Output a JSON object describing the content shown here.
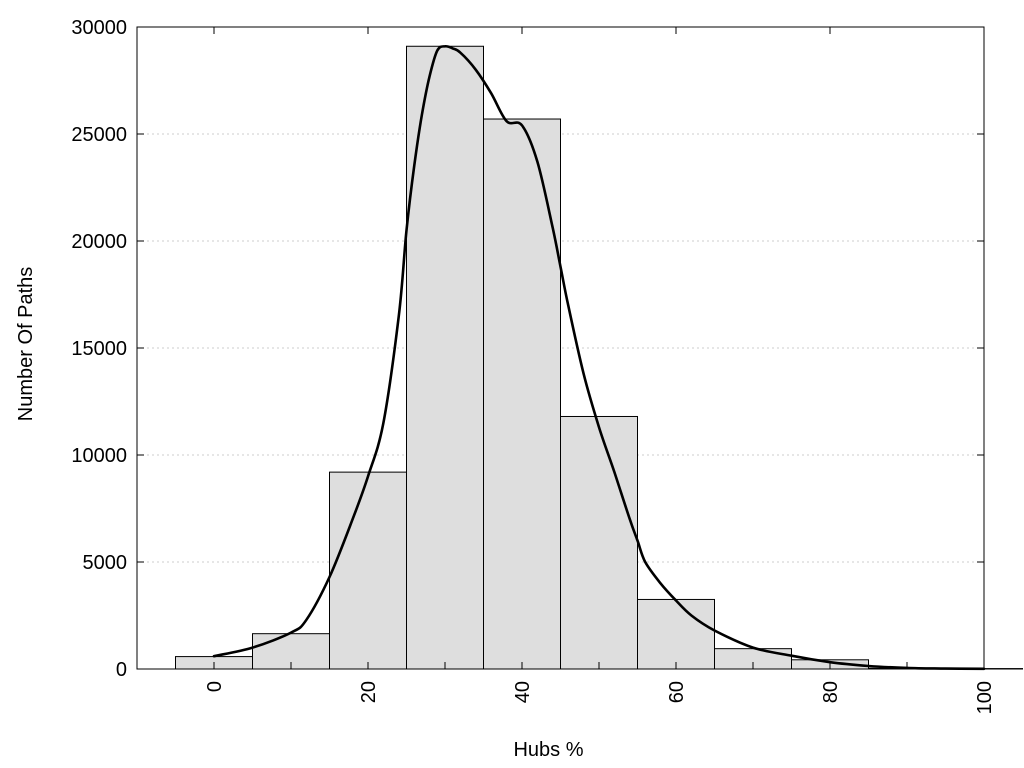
{
  "chart_data": {
    "type": "bar",
    "title": "",
    "xlabel": "Hubs %",
    "ylabel": "Number Of Paths",
    "xlim": [
      -10,
      100
    ],
    "ylim": [
      0,
      30000
    ],
    "grid": "horizontal dotted",
    "x_ticks": [
      "0",
      "20",
      "40",
      "60",
      "80",
      "100"
    ],
    "y_ticks": [
      "0",
      "5000",
      "10000",
      "15000",
      "20000",
      "25000",
      "30000"
    ],
    "bin_width": 10,
    "bins": [
      {
        "x": 0,
        "value": 580
      },
      {
        "x": 10,
        "value": 1650
      },
      {
        "x": 20,
        "value": 9200
      },
      {
        "x": 30,
        "value": 29100
      },
      {
        "x": 40,
        "value": 25700
      },
      {
        "x": 50,
        "value": 11800
      },
      {
        "x": 60,
        "value": 3250
      },
      {
        "x": 70,
        "value": 950
      },
      {
        "x": 80,
        "value": 430
      },
      {
        "x": 90,
        "value": 30
      },
      {
        "x": 100,
        "value": 20
      }
    ],
    "fit_curve": {
      "x": [
        0,
        5,
        10,
        12,
        15,
        18,
        20,
        22,
        24,
        25,
        26,
        27,
        28,
        29,
        30,
        31,
        32,
        34,
        36,
        38,
        40,
        42,
        44,
        45,
        46,
        48,
        50,
        52,
        54,
        55,
        56,
        58,
        60,
        62,
        65,
        70,
        75,
        80,
        85,
        90,
        95,
        100
      ],
      "y": [
        600,
        1000,
        1700,
        2300,
        4300,
        7000,
        9000,
        11500,
        16500,
        20500,
        23500,
        25900,
        27700,
        28900,
        29100,
        29000,
        28800,
        28000,
        26900,
        25600,
        25400,
        23700,
        20600,
        18800,
        17000,
        13800,
        11300,
        9200,
        7000,
        6000,
        5000,
        4000,
        3200,
        2500,
        1800,
        1000,
        620,
        320,
        140,
        50,
        20,
        10
      ]
    }
  }
}
